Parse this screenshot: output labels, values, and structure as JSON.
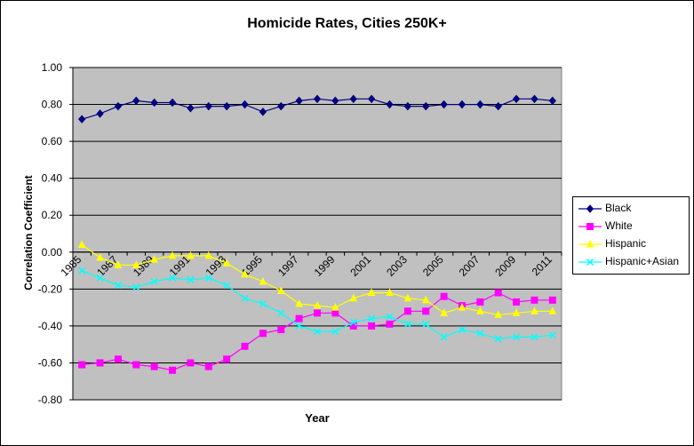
{
  "chart_data": {
    "type": "line",
    "title": "Homicide Rates, Cities 250K+",
    "xlabel": "Year",
    "ylabel": "Correlation Coefficient",
    "ylim": [
      -0.8,
      1.0
    ],
    "yticks": [
      "1.00",
      "0.80",
      "0.60",
      "0.40",
      "0.20",
      "0.00",
      "-0.20",
      "-0.40",
      "-0.60",
      "-0.80"
    ],
    "x": [
      1985,
      1986,
      1987,
      1988,
      1989,
      1990,
      1991,
      1992,
      1993,
      1994,
      1995,
      1996,
      1997,
      1998,
      1999,
      2000,
      2001,
      2002,
      2003,
      2004,
      2005,
      2006,
      2007,
      2008,
      2009,
      2010,
      2011
    ],
    "xtick_labels": [
      "1985",
      "1987",
      "1989",
      "1991",
      "1993",
      "1995",
      "1997",
      "1999",
      "2001",
      "2003",
      "2005",
      "2007",
      "2009",
      "2011"
    ],
    "grid": true,
    "legend_position": "right",
    "plot_background": "#c0c0c0",
    "series": [
      {
        "name": "Black",
        "color": "#000080",
        "marker": "diamond",
        "values": [
          0.72,
          0.75,
          0.79,
          0.82,
          0.81,
          0.81,
          0.78,
          0.79,
          0.79,
          0.8,
          0.76,
          0.79,
          0.82,
          0.83,
          0.82,
          0.83,
          0.83,
          0.8,
          0.79,
          0.79,
          0.8,
          0.8,
          0.8,
          0.79,
          0.83,
          0.83,
          0.82
        ]
      },
      {
        "name": "White",
        "color": "#ff00ff",
        "marker": "square",
        "values": [
          -0.61,
          -0.6,
          -0.58,
          -0.61,
          -0.62,
          -0.64,
          -0.6,
          -0.62,
          -0.58,
          -0.51,
          -0.44,
          -0.42,
          -0.36,
          -0.33,
          -0.33,
          -0.4,
          -0.4,
          -0.39,
          -0.32,
          -0.32,
          -0.24,
          -0.29,
          -0.27,
          -0.22,
          -0.27,
          -0.26,
          -0.26
        ]
      },
      {
        "name": "Hispanic",
        "color": "#ffff00",
        "marker": "triangle",
        "values": [
          0.04,
          -0.03,
          -0.07,
          -0.07,
          -0.04,
          -0.02,
          -0.02,
          -0.02,
          -0.06,
          -0.12,
          -0.16,
          -0.21,
          -0.28,
          -0.29,
          -0.3,
          -0.25,
          -0.22,
          -0.22,
          -0.25,
          -0.26,
          -0.33,
          -0.3,
          -0.32,
          -0.34,
          -0.33,
          -0.32,
          -0.32
        ]
      },
      {
        "name": "Hispanic+Asian",
        "color": "#00ffff",
        "marker": "x",
        "values": [
          -0.1,
          -0.14,
          -0.18,
          -0.19,
          -0.16,
          -0.14,
          -0.15,
          -0.14,
          -0.18,
          -0.25,
          -0.28,
          -0.33,
          -0.4,
          -0.43,
          -0.43,
          -0.38,
          -0.36,
          -0.35,
          -0.39,
          -0.39,
          -0.46,
          -0.42,
          -0.44,
          -0.47,
          -0.46,
          -0.46,
          -0.45
        ]
      }
    ]
  }
}
